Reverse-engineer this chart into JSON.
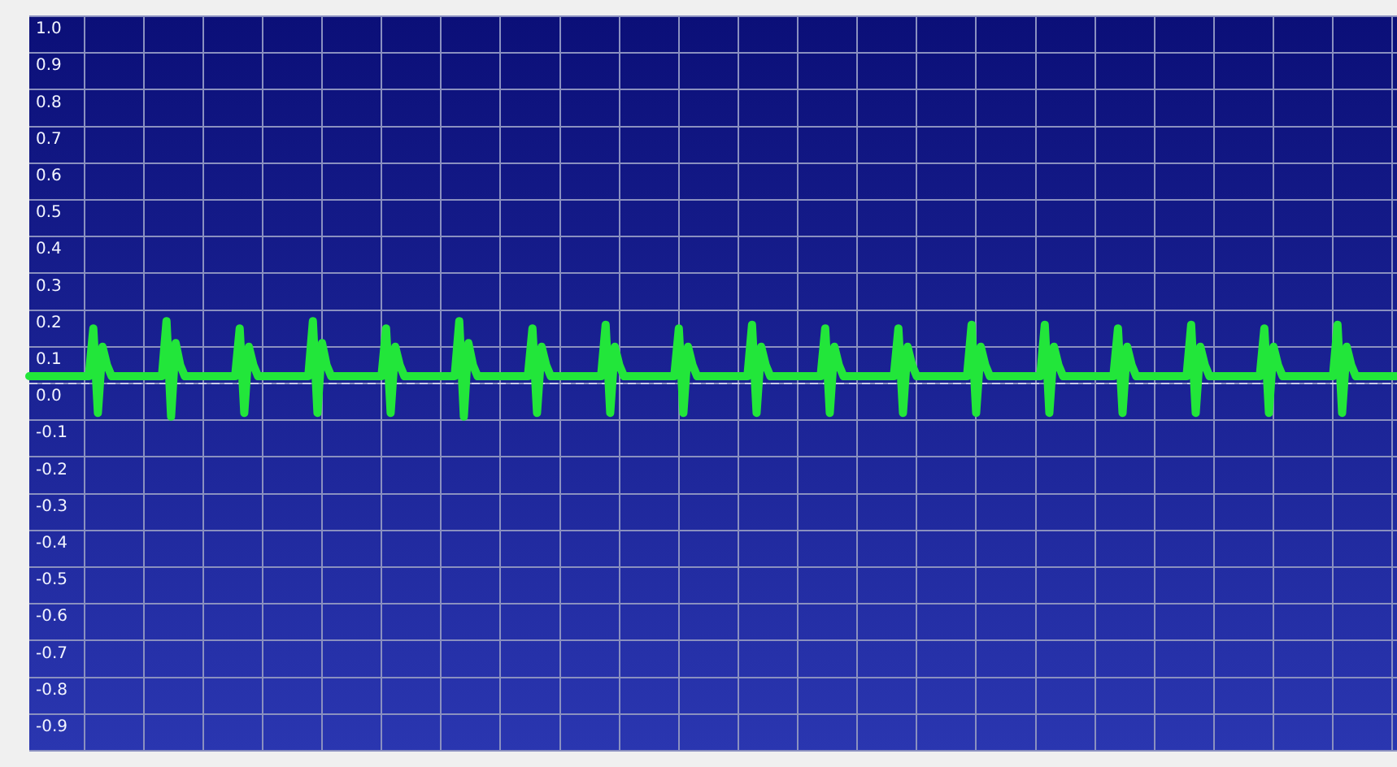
{
  "chart_data": {
    "type": "line",
    "categories": [
      null,
      null,
      null,
      null,
      null,
      null,
      null,
      null,
      null,
      null,
      null,
      null,
      null,
      null,
      null,
      null,
      null,
      null,
      null,
      null,
      null,
      null,
      null,
      null,
      null,
      null,
      null,
      null,
      null,
      null,
      null,
      null,
      null,
      null,
      null,
      null,
      null,
      null,
      null,
      null,
      null,
      null,
      null,
      null,
      null,
      null,
      null,
      null,
      null,
      null,
      null,
      null,
      null,
      null,
      null,
      null,
      null,
      null,
      null,
      null,
      null,
      null,
      null,
      null,
      null,
      null,
      null,
      null,
      null,
      null,
      null,
      null,
      null,
      null,
      null,
      null,
      null,
      null,
      null,
      null,
      null,
      null,
      null,
      null,
      null,
      null,
      null,
      null,
      null,
      null,
      null,
      null,
      null,
      null,
      null,
      null,
      null,
      null,
      null,
      null,
      null,
      null,
      null,
      null,
      null,
      null,
      null,
      null,
      null,
      null,
      null,
      null,
      null,
      null,
      null,
      null,
      null,
      null,
      null,
      null,
      null,
      null,
      null,
      null,
      null,
      null,
      null,
      null,
      null,
      null,
      null,
      null,
      null,
      null,
      null,
      null,
      null,
      null,
      null,
      null,
      null,
      null,
      null,
      null,
      null,
      null,
      null,
      null,
      null,
      null,
      null,
      null,
      null,
      null,
      null,
      null,
      null,
      null,
      null,
      null,
      null,
      null,
      null,
      null,
      null,
      null,
      null,
      null,
      null,
      null,
      null,
      null,
      null,
      null,
      null,
      null,
      null,
      null,
      null,
      null,
      null,
      null,
      null,
      null,
      null,
      null,
      null,
      null,
      null,
      null,
      null,
      null,
      null,
      null,
      null,
      null,
      null,
      null,
      null,
      null,
      null,
      null,
      null,
      null,
      null,
      null,
      null,
      null,
      null,
      null,
      null,
      null,
      null,
      null,
      null,
      null,
      null,
      null,
      null,
      null,
      null,
      null,
      null,
      null,
      null,
      null,
      null,
      null,
      null,
      null,
      null,
      null,
      null,
      null,
      null,
      null,
      null,
      null,
      null,
      null,
      null,
      null,
      null,
      null,
      null,
      null,
      null,
      null,
      null,
      null,
      null,
      null,
      null,
      null,
      null,
      null,
      null,
      null,
      null,
      null,
      null,
      null,
      null,
      null,
      null,
      null,
      null,
      null,
      null,
      null,
      null,
      null,
      null,
      null,
      null,
      null,
      null,
      null,
      null,
      null,
      null,
      null,
      null,
      null,
      null,
      null,
      null,
      null,
      null,
      null,
      null,
      null,
      null,
      null,
      null,
      null,
      null,
      null,
      null,
      null
    ],
    "series": [
      {
        "color": "#22e63a",
        "values": [
          0.02,
          0.02,
          0.02,
          0.02,
          0.02,
          0.02,
          0.02,
          0.02,
          0.02,
          0.02,
          0.02,
          0.02,
          0.02,
          0.02,
          0.15,
          -0.08,
          0.1,
          0.05,
          0.02,
          0.02,
          0.02,
          0.02,
          0.02,
          0.02,
          0.02,
          0.02,
          0.02,
          0.02,
          0.02,
          0.02,
          0.17,
          -0.09,
          0.11,
          0.05,
          0.02,
          0.02,
          0.02,
          0.02,
          0.02,
          0.02,
          0.02,
          0.02,
          0.02,
          0.02,
          0.02,
          0.02,
          0.15,
          -0.08,
          0.1,
          0.05,
          0.02,
          0.02,
          0.02,
          0.02,
          0.02,
          0.02,
          0.02,
          0.02,
          0.02,
          0.02,
          0.02,
          0.02,
          0.17,
          -0.08,
          0.11,
          0.05,
          0.02,
          0.02,
          0.02,
          0.02,
          0.02,
          0.02,
          0.02,
          0.02,
          0.02,
          0.02,
          0.02,
          0.02,
          0.15,
          -0.08,
          0.1,
          0.05,
          0.02,
          0.02,
          0.02,
          0.02,
          0.02,
          0.02,
          0.02,
          0.02,
          0.02,
          0.02,
          0.02,
          0.02,
          0.17,
          -0.09,
          0.11,
          0.05,
          0.02,
          0.02,
          0.02,
          0.02,
          0.02,
          0.02,
          0.02,
          0.02,
          0.02,
          0.02,
          0.02,
          0.02,
          0.15,
          -0.08,
          0.1,
          0.05,
          0.02,
          0.02,
          0.02,
          0.02,
          0.02,
          0.02,
          0.02,
          0.02,
          0.02,
          0.02,
          0.02,
          0.02,
          0.16,
          -0.08,
          0.1,
          0.05,
          0.02,
          0.02,
          0.02,
          0.02,
          0.02,
          0.02,
          0.02,
          0.02,
          0.02,
          0.02,
          0.02,
          0.02,
          0.15,
          -0.08,
          0.1,
          0.05,
          0.02,
          0.02,
          0.02,
          0.02,
          0.02,
          0.02,
          0.02,
          0.02,
          0.02,
          0.02,
          0.02,
          0.02,
          0.16,
          -0.08,
          0.1,
          0.05,
          0.02,
          0.02,
          0.02,
          0.02,
          0.02,
          0.02,
          0.02,
          0.02,
          0.02,
          0.02,
          0.02,
          0.02,
          0.15,
          -0.08,
          0.1,
          0.05,
          0.02,
          0.02,
          0.02,
          0.02,
          0.02,
          0.02,
          0.02,
          0.02,
          0.02,
          0.02,
          0.02,
          0.02,
          0.15,
          -0.08,
          0.1,
          0.05,
          0.02,
          0.02,
          0.02,
          0.02,
          0.02,
          0.02,
          0.02,
          0.02,
          0.02,
          0.02,
          0.02,
          0.02,
          0.16,
          -0.08,
          0.1,
          0.05,
          0.02,
          0.02,
          0.02,
          0.02,
          0.02,
          0.02,
          0.02,
          0.02,
          0.02,
          0.02,
          0.02,
          0.02,
          0.16,
          -0.08,
          0.1,
          0.05,
          0.02,
          0.02,
          0.02,
          0.02,
          0.02,
          0.02,
          0.02,
          0.02,
          0.02,
          0.02,
          0.02,
          0.02,
          0.15,
          -0.08,
          0.1,
          0.05,
          0.02,
          0.02,
          0.02,
          0.02,
          0.02,
          0.02,
          0.02,
          0.02,
          0.02,
          0.02,
          0.02,
          0.02,
          0.16,
          -0.08,
          0.1,
          0.05,
          0.02,
          0.02,
          0.02,
          0.02,
          0.02,
          0.02,
          0.02,
          0.02,
          0.02,
          0.02,
          0.02,
          0.02,
          0.15,
          -0.08,
          0.1,
          0.05,
          0.02,
          0.02,
          0.02,
          0.02,
          0.02,
          0.02,
          0.02,
          0.02,
          0.02,
          0.02,
          0.02,
          0.02,
          0.16,
          -0.08,
          0.1,
          0.05,
          0.02,
          0.02,
          0.02,
          0.02,
          0.02,
          0.02,
          0.02,
          0.02,
          0.02,
          0.02
        ]
      }
    ],
    "ylim": [
      -1.0,
      1.0
    ],
    "yticks": [
      {
        "value": 1.0,
        "label": "1.0"
      },
      {
        "value": 0.9,
        "label": "0.9"
      },
      {
        "value": 0.8,
        "label": "0.8"
      },
      {
        "value": 0.7,
        "label": "0.7"
      },
      {
        "value": 0.6,
        "label": "0.6"
      },
      {
        "value": 0.5,
        "label": "0.5"
      },
      {
        "value": 0.4,
        "label": "0.4"
      },
      {
        "value": 0.3,
        "label": "0.3"
      },
      {
        "value": 0.2,
        "label": "0.2"
      },
      {
        "value": 0.1,
        "label": "0.1"
      },
      {
        "value": 0.0,
        "label": "0.0"
      },
      {
        "value": -0.1,
        "label": "-0.1"
      },
      {
        "value": -0.2,
        "label": "-0.2"
      },
      {
        "value": -0.3,
        "label": "-0.3"
      },
      {
        "value": -0.4,
        "label": "-0.4"
      },
      {
        "value": -0.5,
        "label": "-0.5"
      },
      {
        "value": -0.6,
        "label": "-0.6"
      },
      {
        "value": -0.7,
        "label": "-0.7"
      },
      {
        "value": -0.8,
        "label": "-0.8"
      },
      {
        "value": -0.9,
        "label": "-0.9"
      },
      {
        "value": -1.0,
        "label": null
      }
    ],
    "ref_lines": [
      {
        "axis": "y",
        "value": 0,
        "color": "#c8cce8",
        "line_style": "dashed"
      }
    ],
    "grid": true,
    "tick_labels": "y",
    "marker": "none",
    "line_style": "solid"
  }
}
